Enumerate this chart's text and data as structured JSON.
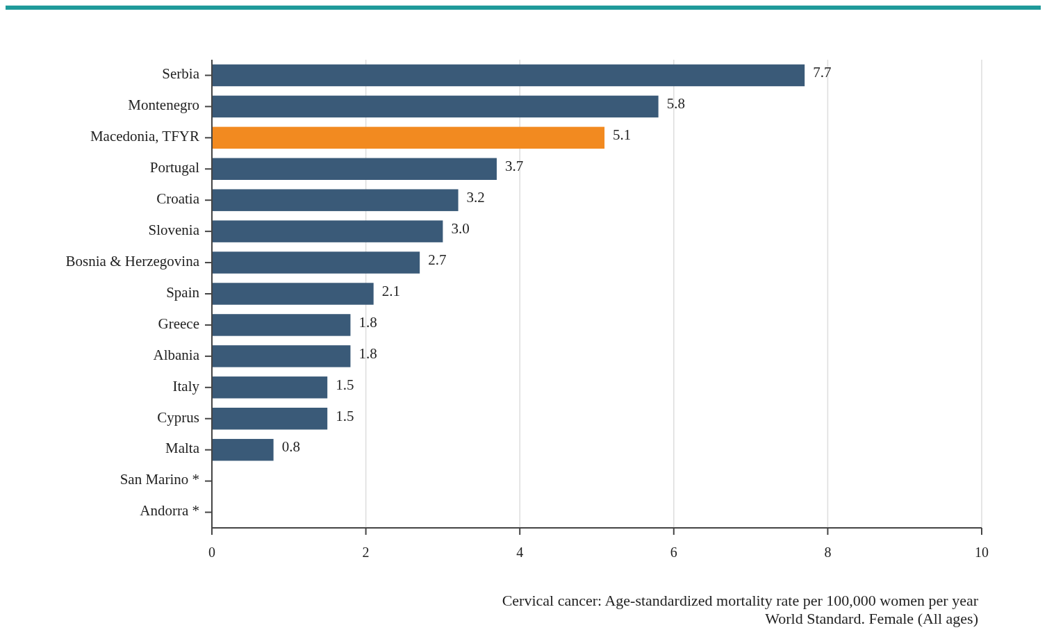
{
  "chart_data": {
    "type": "bar",
    "orientation": "horizontal",
    "categories": [
      "Serbia",
      "Montenegro",
      "Macedonia, TFYR",
      "Portugal",
      "Croatia",
      "Slovenia",
      "Bosnia & Herzegovina",
      "Spain",
      "Greece",
      "Albania",
      "Italy",
      "Cyprus",
      "Malta",
      "San Marino *",
      "Andorra *"
    ],
    "values": [
      7.7,
      5.8,
      5.1,
      3.7,
      3.2,
      3.0,
      2.7,
      2.1,
      1.8,
      1.8,
      1.5,
      1.5,
      0.8,
      null,
      null
    ],
    "value_labels": [
      "7.7",
      "5.8",
      "5.1",
      "3.7",
      "3.2",
      "3.0",
      "2.7",
      "2.1",
      "1.8",
      "1.8",
      "1.5",
      "1.5",
      "0.8",
      null,
      null
    ],
    "colors": [
      "#3a5a78",
      "#3a5a78",
      "#f28a20",
      "#3a5a78",
      "#3a5a78",
      "#3a5a78",
      "#3a5a78",
      "#3a5a78",
      "#3a5a78",
      "#3a5a78",
      "#3a5a78",
      "#3a5a78",
      "#3a5a78",
      null,
      null
    ],
    "xlim": [
      0,
      10
    ],
    "xticks": [
      0,
      2,
      4,
      6,
      8,
      10
    ],
    "grid": "x",
    "xlabel": "Cervical cancer: Age-standardized mortality rate per 100,000 women per year",
    "annotations": [
      "World Standard. Female (All ages)"
    ]
  }
}
